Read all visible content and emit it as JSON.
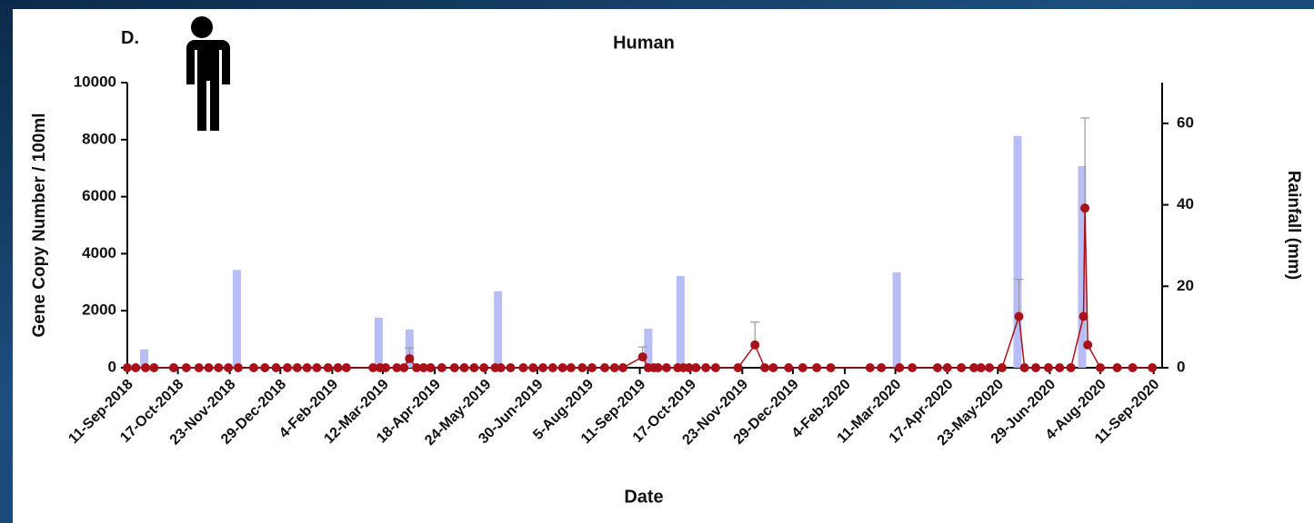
{
  "chart_data": {
    "type": "combo",
    "panel_label": "D.",
    "title": "Human",
    "x_label": "Date",
    "y_label": "Gene Copy Number / 100ml",
    "y2_label": "Rainfall (mm)",
    "xlim": [
      "2018-09-11",
      "2020-09-17"
    ],
    "xticks": [
      {
        "value": "2018-09-11",
        "label": "11-Sep-2018"
      },
      {
        "value": "2018-10-17",
        "label": "17-Oct-2018"
      },
      {
        "value": "2018-11-23",
        "label": "23-Nov-2018"
      },
      {
        "value": "2018-12-29",
        "label": "29-Dec-2018"
      },
      {
        "value": "2019-02-04",
        "label": "4-Feb-2019"
      },
      {
        "value": "2019-03-12",
        "label": "12-Mar-2019"
      },
      {
        "value": "2019-04-18",
        "label": "18-Apr-2019"
      },
      {
        "value": "2019-05-24",
        "label": "24-May-2019"
      },
      {
        "value": "2019-06-30",
        "label": "30-Jun-2019"
      },
      {
        "value": "2019-08-05",
        "label": "5-Aug-2019"
      },
      {
        "value": "2019-09-11",
        "label": "11-Sep-2019"
      },
      {
        "value": "2019-10-17",
        "label": "17-Oct-2019"
      },
      {
        "value": "2019-11-23",
        "label": "23-Nov-2019"
      },
      {
        "value": "2019-12-29",
        "label": "29-Dec-2019"
      },
      {
        "value": "2020-02-04",
        "label": "4-Feb-2020"
      },
      {
        "value": "2020-03-11",
        "label": "11-Mar-2020"
      },
      {
        "value": "2020-04-17",
        "label": "17-Apr-2020"
      },
      {
        "value": "2020-05-23",
        "label": "23-May-2020"
      },
      {
        "value": "2020-06-29",
        "label": "29-Jun-2020"
      },
      {
        "value": "2020-08-04",
        "label": "4-Aug-2020"
      },
      {
        "value": "2020-09-11",
        "label": "11-Sep-2020"
      }
    ],
    "ylim": [
      0,
      10000
    ],
    "yticks": [
      0,
      2000,
      4000,
      6000,
      8000,
      10000
    ],
    "y2lim": [
      0,
      70
    ],
    "y2ticks": [
      0,
      20,
      40,
      60
    ],
    "series": [
      {
        "kind": "bar",
        "axis": "y2",
        "color": "#b9bdf6",
        "x": [
          "2018-09-23",
          "2018-11-28",
          "2019-03-09",
          "2019-03-31",
          "2019-06-02",
          "2019-09-17",
          "2019-10-10",
          "2020-03-12",
          "2020-06-06",
          "2020-07-22"
        ],
        "values": [
          4.5,
          24,
          12.3,
          9.4,
          18.8,
          9.6,
          22.5,
          23.4,
          56.9,
          49.5
        ]
      },
      {
        "kind": "line",
        "color": "#a8101a",
        "x": [
          "2018-09-11",
          "2018-09-17",
          "2018-09-24",
          "2018-09-30",
          "2018-10-14",
          "2018-10-23",
          "2018-11-01",
          "2018-11-08",
          "2018-11-15",
          "2018-11-22",
          "2018-11-29",
          "2018-12-10",
          "2018-12-18",
          "2018-12-26",
          "2019-01-03",
          "2019-01-10",
          "2019-01-17",
          "2019-01-24",
          "2019-02-01",
          "2019-02-08",
          "2019-02-14",
          "2019-03-05",
          "2019-03-10",
          "2019-03-14",
          "2019-03-22",
          "2019-03-27",
          "2019-03-31",
          "2019-04-05",
          "2019-04-10",
          "2019-04-15",
          "2019-04-23",
          "2019-05-02",
          "2019-05-09",
          "2019-05-16",
          "2019-05-23",
          "2019-05-31",
          "2019-06-04",
          "2019-06-11",
          "2019-06-20",
          "2019-06-27",
          "2019-07-04",
          "2019-07-11",
          "2019-07-18",
          "2019-07-24",
          "2019-08-01",
          "2019-08-08",
          "2019-08-17",
          "2019-08-24",
          "2019-08-30",
          "2019-09-13",
          "2019-09-17",
          "2019-09-21",
          "2019-09-24",
          "2019-09-30",
          "2019-10-08",
          "2019-10-12",
          "2019-10-16",
          "2019-10-21",
          "2019-10-28",
          "2019-11-04",
          "2019-11-20",
          "2019-12-02",
          "2019-12-09",
          "2019-12-15",
          "2019-12-26",
          "2020-01-05",
          "2020-01-15",
          "2020-01-25",
          "2020-02-22",
          "2020-03-01",
          "2020-03-14",
          "2020-03-23",
          "2020-04-10",
          "2020-04-17",
          "2020-04-27",
          "2020-05-06",
          "2020-05-11",
          "2020-05-17",
          "2020-05-26",
          "2020-06-07",
          "2020-06-11",
          "2020-06-19",
          "2020-06-28",
          "2020-07-06",
          "2020-07-14",
          "2020-07-23",
          "2020-07-24",
          "2020-07-26",
          "2020-08-04",
          "2020-08-16",
          "2020-08-27",
          "2020-09-10"
        ],
        "values": [
          0,
          0,
          0,
          0,
          0,
          0,
          0,
          0,
          0,
          0,
          0,
          0,
          0,
          0,
          0,
          0,
          0,
          0,
          0,
          0,
          0,
          0,
          0,
          0,
          0,
          0,
          320,
          0,
          0,
          0,
          0,
          0,
          0,
          0,
          0,
          0,
          0,
          0,
          0,
          0,
          0,
          0,
          0,
          0,
          0,
          0,
          0,
          0,
          0,
          380,
          0,
          0,
          0,
          0,
          0,
          0,
          0,
          0,
          0,
          0,
          0,
          800,
          0,
          0,
          0,
          0,
          0,
          0,
          0,
          0,
          0,
          0,
          0,
          0,
          0,
          0,
          0,
          0,
          0,
          1800,
          0,
          0,
          0,
          0,
          0,
          1800,
          5600,
          800,
          0,
          0,
          0,
          0
        ],
        "errors": [
          null,
          null,
          null,
          null,
          null,
          null,
          null,
          null,
          null,
          null,
          null,
          null,
          null,
          null,
          null,
          null,
          null,
          null,
          null,
          null,
          null,
          null,
          null,
          null,
          null,
          null,
          380,
          null,
          null,
          null,
          null,
          null,
          null,
          null,
          null,
          null,
          null,
          null,
          null,
          null,
          null,
          null,
          null,
          null,
          null,
          null,
          null,
          null,
          null,
          350,
          null,
          null,
          null,
          null,
          null,
          null,
          null,
          null,
          null,
          null,
          null,
          800,
          null,
          null,
          null,
          null,
          null,
          null,
          null,
          null,
          null,
          null,
          null,
          null,
          null,
          null,
          null,
          null,
          null,
          1300,
          null,
          null,
          null,
          null,
          null,
          null,
          3160,
          null,
          null,
          null,
          null,
          null
        ]
      }
    ]
  }
}
